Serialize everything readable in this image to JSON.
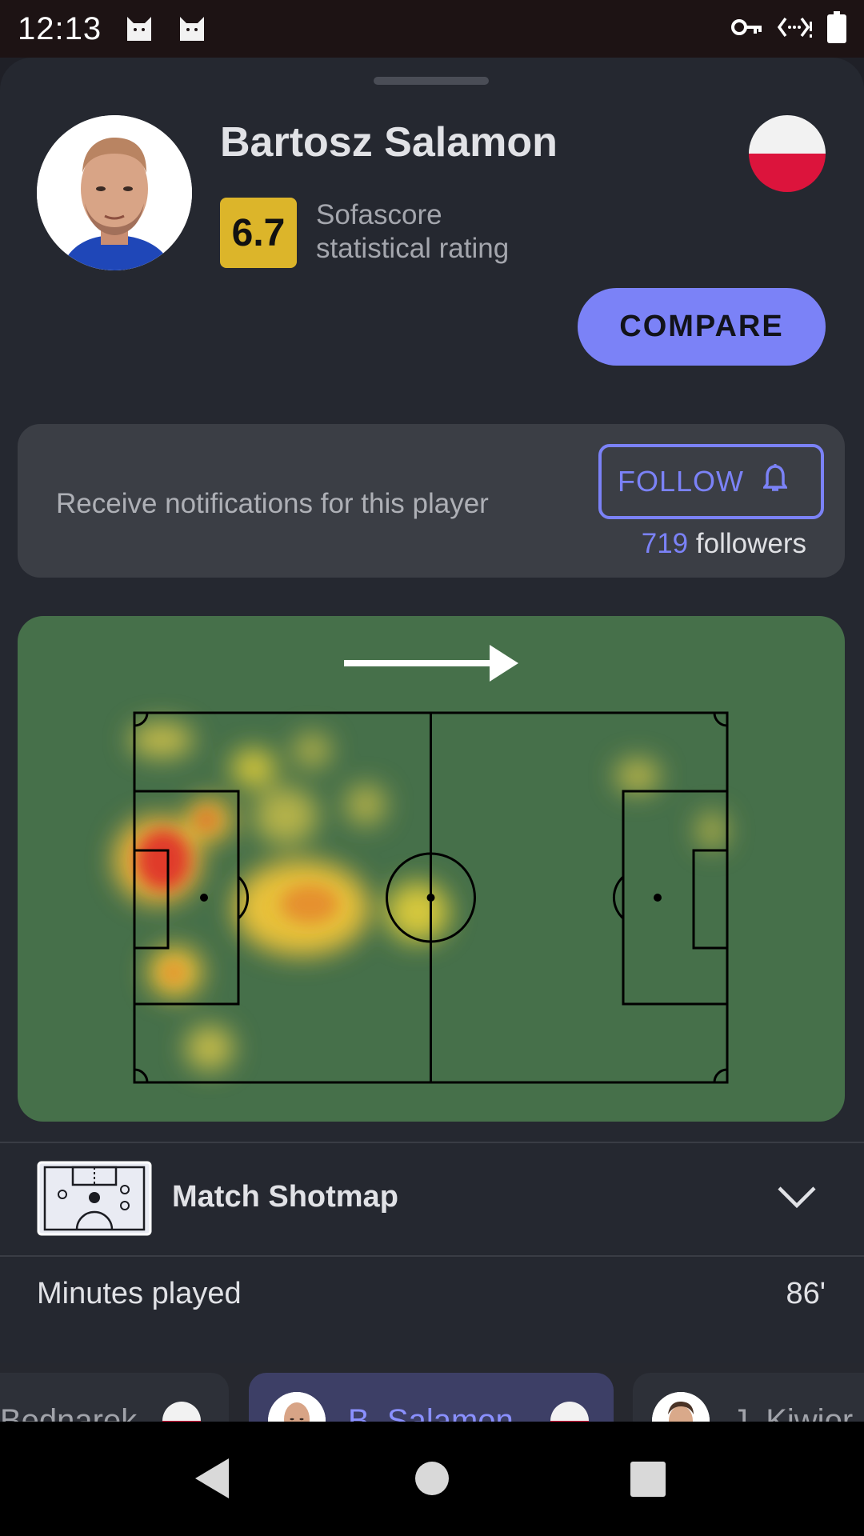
{
  "status": {
    "time": "12:13",
    "icons": [
      "cat-notification-icon",
      "cat-notification-icon",
      "vpn-key-icon",
      "data-saver-icon",
      "battery-icon"
    ]
  },
  "player": {
    "name": "Bartosz Salamon",
    "rating": "6.7",
    "rating_label_line1": "Sofascore",
    "rating_label_line2": "statistical rating",
    "flag": "poland-flag"
  },
  "actions": {
    "compare_label": "COMPARE"
  },
  "follow": {
    "description": "Receive notifications for this player",
    "button_label": "FOLLOW",
    "followers_count": "719",
    "followers_suffix": "followers"
  },
  "heatmap": {
    "attack_direction": "right",
    "colors": {
      "pitch": "#46704a",
      "hot": "#e03a2a",
      "warm": "#e8c93a"
    }
  },
  "shotmap": {
    "label": "Match Shotmap"
  },
  "stats": {
    "minutes_label": "Minutes played",
    "minutes_value": "86'"
  },
  "player_strip": [
    {
      "name": "Bednarek",
      "active": false
    },
    {
      "name": "B. Salamon",
      "active": true
    },
    {
      "name": "J. Kiwior",
      "active": false
    }
  ],
  "colors": {
    "accent": "#7b82f7",
    "rating_badge": "#dcb52a",
    "background": "#252830"
  }
}
